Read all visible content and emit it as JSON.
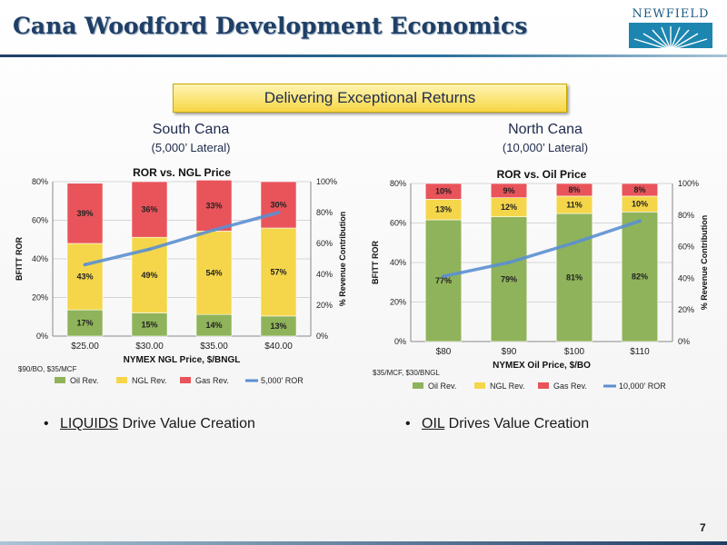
{
  "header": {
    "title": "Cana Woodford Development Economics",
    "logo_text": "NEWFIELD"
  },
  "banner": "Delivering Exceptional Returns",
  "south": {
    "title": "South Cana",
    "subtitle": "(5,000’ Lateral)"
  },
  "north": {
    "title": "North Cana",
    "subtitle": "(10,000’ Lateral)"
  },
  "chart_data": [
    {
      "type": "bar",
      "stacked": true,
      "title": "ROR vs. NGL Price",
      "xlabel": "NYMEX NGL Price, $/BNGL",
      "ylabel": "BFITT ROR",
      "y2label": "% Revenue Contribution",
      "ylim": [
        0,
        80
      ],
      "y_ticks": [
        "0%",
        "20%",
        "40%",
        "60%",
        "80%"
      ],
      "y2lim": [
        0,
        100
      ],
      "y2_ticks": [
        "0%",
        "20%",
        "40%",
        "60%",
        "80%",
        "100%"
      ],
      "categories": [
        "$25.00",
        "$30.00",
        "$35.00",
        "$40.00"
      ],
      "series": [
        {
          "name": "Oil Rev.",
          "axis": "y2",
          "values": [
            17,
            15,
            14,
            13
          ],
          "labels": [
            "17%",
            "15%",
            "14%",
            "13%"
          ],
          "color": "#8fb35a"
        },
        {
          "name": "NGL Rev.",
          "axis": "y2",
          "values": [
            43,
            49,
            54,
            57
          ],
          "labels": [
            "43%",
            "49%",
            "54%",
            "57%"
          ],
          "color": "#f5d64a"
        },
        {
          "name": "Gas Rev.",
          "axis": "y2",
          "values": [
            39,
            36,
            33,
            30
          ],
          "labels": [
            "39%",
            "36%",
            "33%",
            "30%"
          ],
          "color": "#e8545a"
        },
        {
          "name": "5,000' ROR",
          "axis": "y",
          "type": "line",
          "values": [
            37,
            45,
            55,
            64
          ],
          "color": "#5b8fd1"
        }
      ],
      "legend": "bottom",
      "note": "$90/BO, $35/MCF"
    },
    {
      "type": "bar",
      "stacked": true,
      "title": "ROR vs. Oil Price",
      "xlabel": "NYMEX Oil Price, $/BO",
      "ylabel": "BFITT ROR",
      "y2label": "% Revenue Contribution",
      "ylim": [
        0,
        80
      ],
      "y_ticks": [
        "0%",
        "20%",
        "40%",
        "60%",
        "80%"
      ],
      "y2lim": [
        0,
        100
      ],
      "y2_ticks": [
        "0%",
        "20%",
        "40%",
        "60%",
        "80%",
        "100%"
      ],
      "categories": [
        "$80",
        "$90",
        "$100",
        "$110"
      ],
      "series": [
        {
          "name": "Oil Rev.",
          "axis": "y2",
          "values": [
            77,
            79,
            81,
            82
          ],
          "labels": [
            "77%",
            "79%",
            "81%",
            "82%"
          ],
          "color": "#8fb35a"
        },
        {
          "name": "NGL Rev.",
          "axis": "y2",
          "values": [
            13,
            12,
            11,
            10
          ],
          "labels": [
            "13%",
            "12%",
            "11%",
            "10%"
          ],
          "color": "#f5d64a"
        },
        {
          "name": "Gas Rev.",
          "axis": "y2",
          "values": [
            10,
            9,
            8,
            8
          ],
          "labels": [
            "10%",
            "9%",
            "8%",
            "8%"
          ],
          "color": "#e8545a"
        },
        {
          "name": "10,000' ROR",
          "axis": "y",
          "type": "line",
          "values": [
            33,
            40,
            50,
            61
          ],
          "color": "#5b8fd1"
        }
      ],
      "legend": "bottom",
      "note": "$35/MCF, $30/BNGL"
    }
  ],
  "bullets": {
    "left": {
      "keyword": "LIQUIDS",
      "rest": " Drive Value Creation"
    },
    "right": {
      "keyword": "OIL",
      "rest": " Drives Value Creation"
    }
  },
  "page_number": "7"
}
